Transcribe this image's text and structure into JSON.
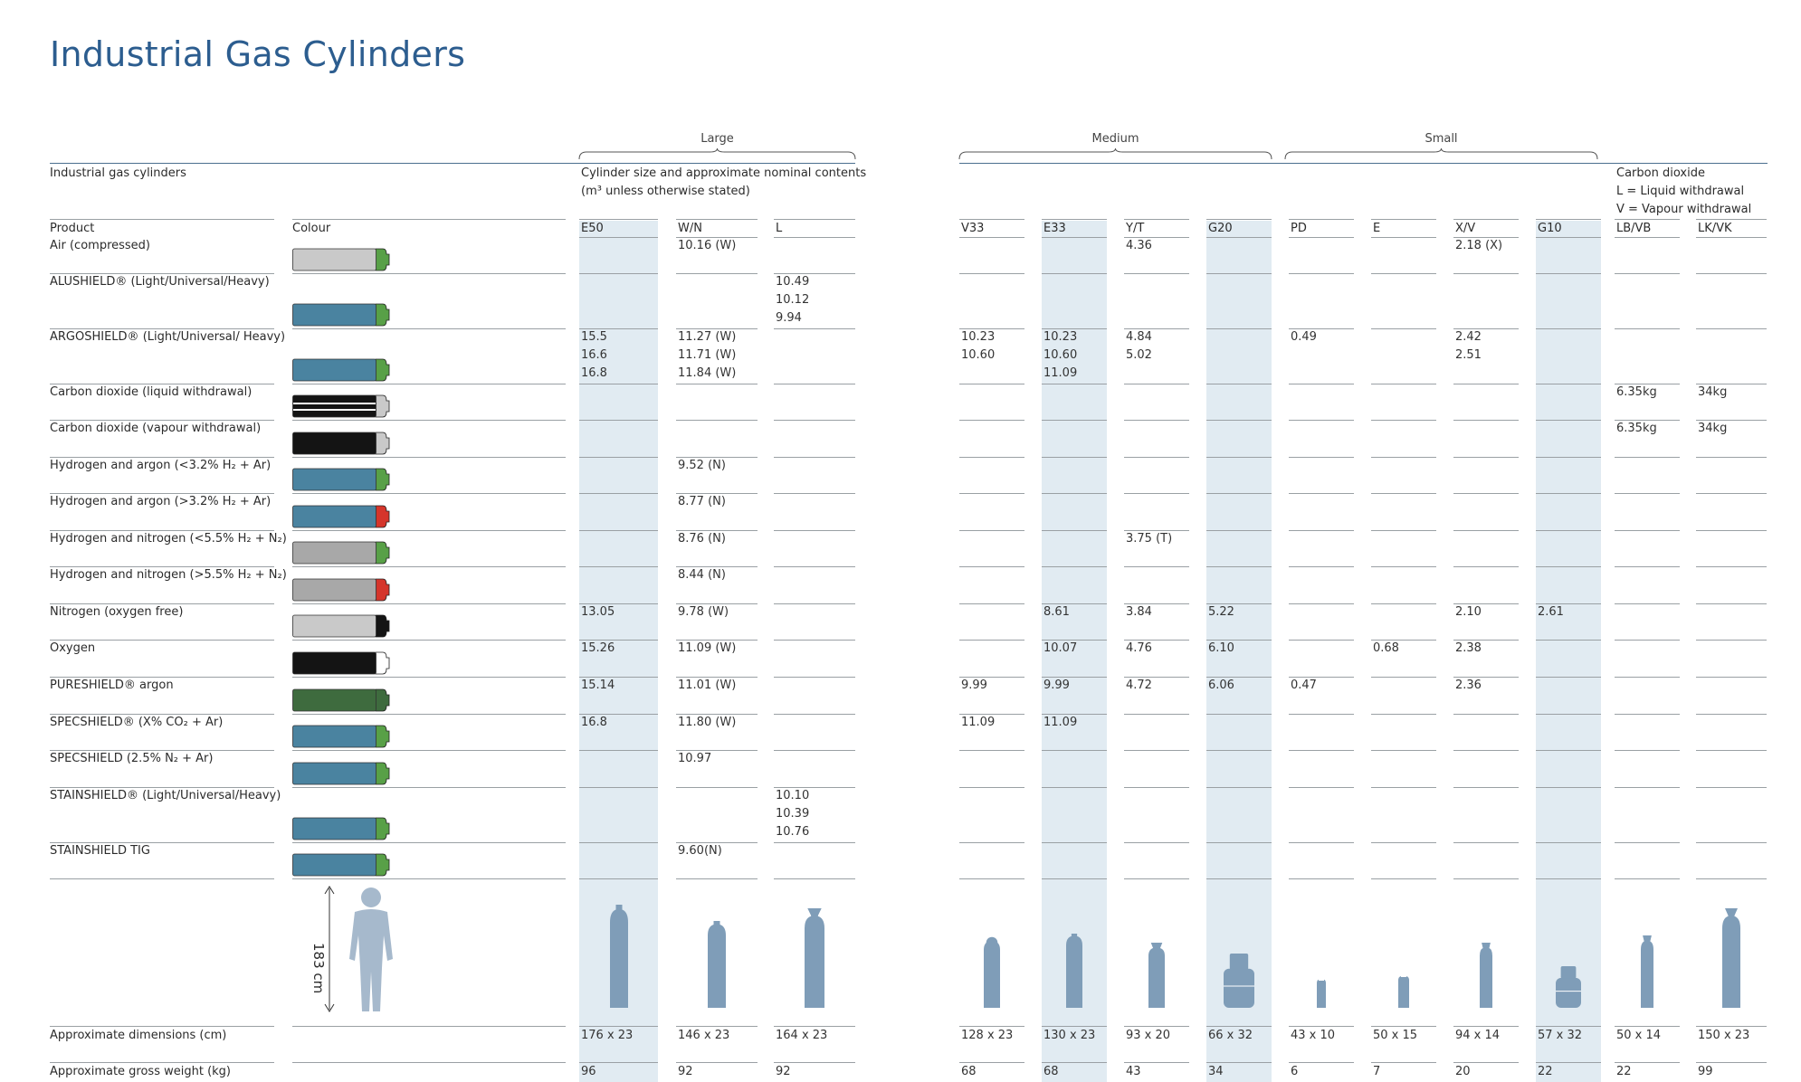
{
  "title": "Industrial Gas Cylinders",
  "groups": [
    "Large",
    "Medium",
    "Small"
  ],
  "header": {
    "section": "Industrial gas cylinders",
    "description_line1": "Cylinder size and approximate nominal contents",
    "description_line2": "(m³ unless otherwise stated)",
    "co2_line1": "Carbon dioxide",
    "co2_line2": "L = Liquid withdrawal",
    "co2_line3": "V = Vapour withdrawal",
    "product_label": "Product",
    "colour_label": "Colour"
  },
  "columns": [
    "E50",
    "W/N",
    "L",
    "V33",
    "E33",
    "Y/T",
    "G20",
    "PD",
    "E",
    "X/V",
    "G10",
    "LB/VB",
    "LK/VK"
  ],
  "rows": [
    {
      "product": "Air (compressed)",
      "colors": [
        "#c9c9c9",
        "#58a047"
      ],
      "values": [
        "",
        "10.16 (W)",
        "",
        "",
        "",
        "4.36",
        "",
        "",
        "",
        "2.18 (X)",
        "",
        "",
        ""
      ]
    },
    {
      "product": "ALUSHIELD® (Light/Universal/Heavy)",
      "colors": [
        "#4a83a0",
        "#58a047"
      ],
      "values": [
        "",
        "",
        "10.49\n10.12\n9.94",
        "",
        "",
        "",
        "",
        "",
        "",
        "",
        "",
        "",
        ""
      ]
    },
    {
      "product": "ARGOSHIELD® (Light/Universal/ Heavy)",
      "colors": [
        "#4a83a0",
        "#58a047"
      ],
      "values": [
        "15.5\n16.6\n16.8",
        "11.27 (W)\n11.71 (W)\n11.84 (W)",
        "",
        "10.23\n10.60",
        "10.23\n10.60\n11.09",
        "4.84\n5.02",
        "",
        "0.49",
        "",
        "2.42\n2.51",
        "",
        "",
        ""
      ]
    },
    {
      "product": "Carbon dioxide  (liquid withdrawal)",
      "colors": [
        "stripe",
        "#c9c9c9"
      ],
      "values": [
        "",
        "",
        "",
        "",
        "",
        "",
        "",
        "",
        "",
        "",
        "",
        "6.35kg",
        "34kg"
      ]
    },
    {
      "product": "Carbon dioxide (vapour withdrawal)",
      "colors": [
        "#141414",
        "#c9c9c9"
      ],
      "values": [
        "",
        "",
        "",
        "",
        "",
        "",
        "",
        "",
        "",
        "",
        "",
        "6.35kg",
        "34kg"
      ]
    },
    {
      "product": "Hydrogen and argon (<3.2% H₂ + Ar)",
      "colors": [
        "#4a83a0",
        "#58a047"
      ],
      "values": [
        "",
        "9.52 (N)",
        "",
        "",
        "",
        "",
        "",
        "",
        "",
        "",
        "",
        "",
        ""
      ]
    },
    {
      "product": "Hydrogen and argon (>3.2% H₂ + Ar)",
      "colors": [
        "#4a83a0",
        "#d5352b"
      ],
      "values": [
        "",
        "8.77 (N)",
        "",
        "",
        "",
        "",
        "",
        "",
        "",
        "",
        "",
        "",
        ""
      ]
    },
    {
      "product": "Hydrogen and nitrogen (<5.5% H₂ + N₂)",
      "colors": [
        "#a8a8a8",
        "#58a047"
      ],
      "values": [
        "",
        "8.76 (N)",
        "",
        "",
        "",
        "3.75 (T)",
        "",
        "",
        "",
        "",
        "",
        "",
        ""
      ]
    },
    {
      "product": "Hydrogen and nitrogen (>5.5% H₂ + N₂)",
      "colors": [
        "#a8a8a8",
        "#d5352b"
      ],
      "values": [
        "",
        "8.44 (N)",
        "",
        "",
        "",
        "",
        "",
        "",
        "",
        "",
        "",
        "",
        ""
      ]
    },
    {
      "product": "Nitrogen (oxygen free)",
      "colors": [
        "#c9c9c9",
        "#141414"
      ],
      "values": [
        "13.05",
        "9.78 (W)",
        "",
        "",
        "8.61",
        "3.84",
        "5.22",
        "",
        "",
        "2.10",
        "2.61",
        "",
        ""
      ]
    },
    {
      "product": "Oxygen",
      "colors": [
        "#141414",
        "#ffffff"
      ],
      "values": [
        "15.26",
        "11.09 (W)",
        "",
        "",
        "10.07",
        "4.76",
        "6.10",
        "",
        "0.68",
        "2.38",
        "",
        "",
        ""
      ]
    },
    {
      "product": "PURESHIELD® argon",
      "colors": [
        "#3e6b3e",
        "#3e6b3e"
      ],
      "values": [
        "15.14",
        "11.01 (W)",
        "",
        "9.99",
        "9.99",
        "4.72",
        "6.06",
        "0.47",
        "",
        "2.36",
        "",
        "",
        ""
      ]
    },
    {
      "product": "SPECSHIELD® (X% CO₂ + Ar)",
      "colors": [
        "#4a83a0",
        "#58a047"
      ],
      "values": [
        "16.8",
        "11.80 (W)",
        "",
        "11.09",
        "11.09",
        "",
        "",
        "",
        "",
        "",
        "",
        "",
        ""
      ]
    },
    {
      "product": "SPECSHIELD (2.5% N₂ + Ar)",
      "colors": [
        "#4a83a0",
        "#58a047"
      ],
      "values": [
        "",
        "10.97",
        "",
        "",
        "",
        "",
        "",
        "",
        "",
        "",
        "",
        "",
        ""
      ]
    },
    {
      "product": "STAINSHIELD® (Light/Universal/Heavy)",
      "colors": [
        "#4a83a0",
        "#58a047"
      ],
      "values": [
        "",
        "",
        "10.10\n10.39\n10.76",
        "",
        "",
        "",
        "",
        "",
        "",
        "",
        "",
        "",
        ""
      ]
    },
    {
      "product": "STAINSHIELD TIG",
      "colors": [
        "#4a83a0",
        "#58a047"
      ],
      "values": [
        "",
        "9.60(N)",
        "",
        "",
        "",
        "",
        "",
        "",
        "",
        "",
        "",
        "",
        ""
      ]
    }
  ],
  "person_height": "183 cm",
  "dimensions_label": "Approximate dimensions (cm)",
  "dimensions": [
    "176 x 23",
    "146 x 23",
    "164 x 23",
    "128 x 23",
    "130 x 23",
    "93 x 20",
    "66 x 32",
    "43 x 10",
    "50 x 15",
    "94 x 14",
    "57 x 32",
    "50 x 14",
    "150 x 23"
  ],
  "weight_label": "Approximate gross weight (kg)",
  "weights": [
    "96",
    "92",
    "92",
    "68",
    "68",
    "43",
    "34",
    "6",
    "7",
    "20",
    "22",
    "22",
    "99"
  ],
  "colors": {
    "title": "#2c5d8f",
    "shade": "#e1ebf2",
    "bottle": "#7f9db8"
  }
}
